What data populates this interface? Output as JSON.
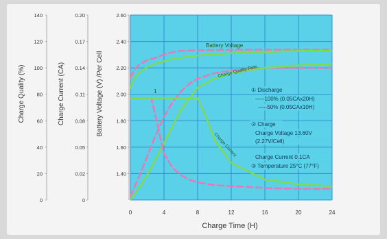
{
  "chart_data": {
    "type": "line",
    "xlabel": "Charge Time (H)",
    "x_ticks": [
      0,
      4,
      8,
      12,
      16,
      20,
      24
    ],
    "xlim": [
      0,
      24
    ],
    "grid": true,
    "y_axes": [
      {
        "id": "charge_quality",
        "label": "Charge Quality (%)",
        "ticks": [
          "140",
          "120",
          "100",
          "80",
          "60",
          "40",
          "20",
          "0"
        ],
        "range": [
          0,
          140
        ]
      },
      {
        "id": "charge_current",
        "label": "Charge Current (CA)",
        "ticks": [
          "0.20",
          "0.17",
          "0.14",
          "0.11",
          "0.08",
          "0.05",
          "0.02",
          "0"
        ],
        "range": [
          0,
          0.2
        ]
      },
      {
        "id": "battery_voltage",
        "label": "Battery Voltage (V) /Per Cell",
        "ticks": [
          "2.60",
          "2.40",
          "2.20",
          "2.00",
          "1.80",
          "1.60",
          "1.40"
        ],
        "range": [
          1.0,
          2.6
        ]
      }
    ],
    "series": [
      {
        "name": "Battery Voltage",
        "style": "dashed",
        "color": "#e879b8",
        "x": [
          0,
          0.5,
          1,
          2,
          3,
          4,
          5,
          6,
          8,
          12,
          16,
          20,
          24
        ],
        "y": [
          2.06,
          2.13,
          2.17,
          2.21,
          2.23,
          2.26,
          2.28,
          2.29,
          2.295,
          2.3,
          2.3,
          2.3,
          2.3
        ]
      },
      {
        "name": "Battery Voltage",
        "style": "solid",
        "color": "#7ed957",
        "x": [
          0,
          0.5,
          1,
          2,
          3,
          4,
          5,
          6,
          8,
          12,
          16,
          20,
          24
        ],
        "y": [
          1.97,
          2.06,
          2.1,
          2.15,
          2.18,
          2.2,
          2.22,
          2.23,
          2.25,
          2.27,
          2.28,
          2.29,
          2.29
        ]
      },
      {
        "name": "Charge Quality Rate",
        "style": "dashed",
        "color": "#e879b8",
        "x": [
          0,
          1,
          2,
          3,
          4,
          5,
          6,
          7,
          8,
          10,
          12,
          16,
          20,
          24
        ],
        "y": [
          3,
          17,
          33,
          49,
          63,
          74,
          82,
          88,
          92,
          96,
          98,
          100,
          100,
          100
        ]
      },
      {
        "name": "Charge Quality Rate",
        "style": "solid",
        "color": "#7ed957",
        "x": [
          0,
          1,
          2,
          3,
          4,
          5,
          6,
          7,
          8,
          10,
          12,
          16,
          20,
          24
        ],
        "y": [
          0,
          9,
          19,
          31,
          43,
          56,
          68,
          77,
          85,
          92,
          96,
          100,
          102,
          103
        ]
      },
      {
        "name": "Charge Current",
        "style": "dashed",
        "color": "#e879b8",
        "x": [
          0,
          0.5,
          1,
          2,
          2.5,
          3,
          3.5,
          4,
          5,
          6,
          7,
          8,
          10,
          12,
          16,
          20,
          24
        ],
        "y": [
          0.11,
          0.11,
          0.11,
          0.11,
          0.11,
          0.09,
          0.07,
          0.05,
          0.035,
          0.027,
          0.022,
          0.019,
          0.016,
          0.015,
          0.013,
          0.012,
          0.012
        ]
      },
      {
        "name": "Charge Current",
        "style": "solid",
        "color": "#7ed957",
        "x": [
          0,
          1,
          2,
          4,
          6,
          7,
          8,
          9,
          10,
          12,
          16,
          20,
          24
        ],
        "y": [
          0.11,
          0.11,
          0.11,
          0.11,
          0.11,
          0.11,
          0.11,
          0.09,
          0.065,
          0.04,
          0.022,
          0.017,
          0.015
        ]
      }
    ],
    "inline_labels": {
      "battery_voltage": "Battery Voltage",
      "charge_quality": "Charge Quality Rate",
      "charge_current": "Charge Current",
      "marker": "1"
    },
    "legend": [
      {
        "text": "① Discharge"
      },
      {
        "text": "-----100% (0.05CAx20H)"
      },
      {
        "text": "-----50% (0.05CAx10H)"
      },
      {
        "text": "② Charge"
      },
      {
        "text": "Charge Voltage 13.60V"
      },
      {
        "text": "(2.27V/Cell)"
      },
      {
        "text": "Charge Current 0.1CA"
      },
      {
        "text": "③ Temperature 25°C (77°F)"
      }
    ],
    "colors": {
      "plot_bg": "#5ad1e8",
      "grid": "#2f8fd0",
      "line_solid": "#7ed957",
      "line_dashed": "#e879b8"
    }
  }
}
